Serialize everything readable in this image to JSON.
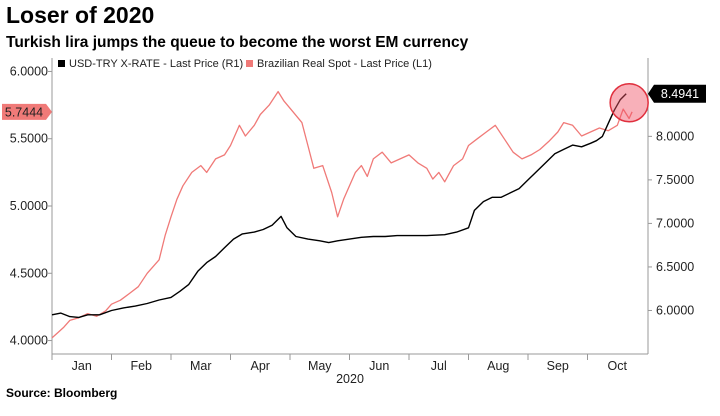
{
  "title": "Loser of 2020",
  "subtitle": "Turkish lira jumps the queue to become the worst EM currency",
  "source": "Source: Bloomberg",
  "chart_data": {
    "type": "line",
    "xlabel": "2020",
    "x_ticks": [
      "Jan",
      "Feb",
      "Mar",
      "Apr",
      "May",
      "Jun",
      "Jul",
      "Aug",
      "Sep",
      "Oct"
    ],
    "left_axis": {
      "ticks": [
        "4.0000",
        "4.5000",
        "5.0000",
        "5.5000",
        "6.0000"
      ],
      "range": [
        3.9,
        6.1
      ]
    },
    "right_axis": {
      "ticks": [
        "6.0000",
        "6.5000",
        "7.0000",
        "7.5000",
        "8.0000"
      ],
      "range": [
        5.5,
        8.9
      ]
    },
    "grid": false,
    "legend_position": "top-left",
    "series": [
      {
        "name": "USD-TRY X-RATE - Last Price (R1)",
        "axis": "right",
        "color": "#000000",
        "last_value_label": "8.4941",
        "points": [
          [
            0.0,
            5.95
          ],
          [
            0.15,
            5.97
          ],
          [
            0.3,
            5.93
          ],
          [
            0.45,
            5.92
          ],
          [
            0.6,
            5.95
          ],
          [
            0.8,
            5.95
          ],
          [
            1.0,
            6.0
          ],
          [
            1.2,
            6.03
          ],
          [
            1.4,
            6.05
          ],
          [
            1.6,
            6.08
          ],
          [
            1.8,
            6.12
          ],
          [
            2.0,
            6.15
          ],
          [
            2.15,
            6.22
          ],
          [
            2.3,
            6.3
          ],
          [
            2.45,
            6.45
          ],
          [
            2.6,
            6.55
          ],
          [
            2.75,
            6.62
          ],
          [
            2.9,
            6.72
          ],
          [
            3.05,
            6.82
          ],
          [
            3.2,
            6.88
          ],
          [
            3.4,
            6.9
          ],
          [
            3.55,
            6.93
          ],
          [
            3.7,
            6.98
          ],
          [
            3.85,
            7.08
          ],
          [
            3.95,
            6.95
          ],
          [
            4.1,
            6.85
          ],
          [
            4.3,
            6.82
          ],
          [
            4.5,
            6.8
          ],
          [
            4.65,
            6.78
          ],
          [
            4.8,
            6.8
          ],
          [
            5.0,
            6.82
          ],
          [
            5.2,
            6.84
          ],
          [
            5.4,
            6.85
          ],
          [
            5.6,
            6.85
          ],
          [
            5.8,
            6.86
          ],
          [
            6.0,
            6.86
          ],
          [
            6.3,
            6.86
          ],
          [
            6.6,
            6.87
          ],
          [
            6.8,
            6.9
          ],
          [
            7.0,
            6.95
          ],
          [
            7.1,
            7.15
          ],
          [
            7.25,
            7.25
          ],
          [
            7.4,
            7.3
          ],
          [
            7.55,
            7.3
          ],
          [
            7.7,
            7.35
          ],
          [
            7.85,
            7.4
          ],
          [
            8.0,
            7.5
          ],
          [
            8.15,
            7.6
          ],
          [
            8.3,
            7.7
          ],
          [
            8.45,
            7.8
          ],
          [
            8.6,
            7.85
          ],
          [
            8.75,
            7.9
          ],
          [
            8.9,
            7.88
          ],
          [
            9.05,
            7.92
          ],
          [
            9.15,
            7.95
          ],
          [
            9.25,
            8.0
          ],
          [
            9.35,
            8.15
          ],
          [
            9.45,
            8.3
          ],
          [
            9.55,
            8.42
          ],
          [
            9.65,
            8.49
          ]
        ]
      },
      {
        "name": "Brazilian Real Spot - Last Price (L1)",
        "axis": "left",
        "color": "#f07a78",
        "last_value_label": "5.7444",
        "points": [
          [
            0.0,
            4.02
          ],
          [
            0.1,
            4.06
          ],
          [
            0.2,
            4.1
          ],
          [
            0.3,
            4.15
          ],
          [
            0.45,
            4.17
          ],
          [
            0.6,
            4.2
          ],
          [
            0.75,
            4.18
          ],
          [
            0.9,
            4.22
          ],
          [
            1.0,
            4.27
          ],
          [
            1.15,
            4.3
          ],
          [
            1.3,
            4.35
          ],
          [
            1.45,
            4.4
          ],
          [
            1.6,
            4.5
          ],
          [
            1.8,
            4.6
          ],
          [
            1.9,
            4.78
          ],
          [
            2.0,
            4.92
          ],
          [
            2.1,
            5.05
          ],
          [
            2.2,
            5.15
          ],
          [
            2.35,
            5.25
          ],
          [
            2.5,
            5.3
          ],
          [
            2.6,
            5.25
          ],
          [
            2.75,
            5.35
          ],
          [
            2.9,
            5.38
          ],
          [
            3.0,
            5.45
          ],
          [
            3.15,
            5.6
          ],
          [
            3.25,
            5.52
          ],
          [
            3.4,
            5.6
          ],
          [
            3.5,
            5.68
          ],
          [
            3.65,
            5.75
          ],
          [
            3.8,
            5.85
          ],
          [
            3.9,
            5.78
          ],
          [
            4.05,
            5.7
          ],
          [
            4.2,
            5.62
          ],
          [
            4.3,
            5.45
          ],
          [
            4.4,
            5.28
          ],
          [
            4.55,
            5.3
          ],
          [
            4.7,
            5.1
          ],
          [
            4.8,
            4.92
          ],
          [
            4.9,
            5.05
          ],
          [
            5.0,
            5.15
          ],
          [
            5.1,
            5.25
          ],
          [
            5.2,
            5.3
          ],
          [
            5.3,
            5.22
          ],
          [
            5.4,
            5.35
          ],
          [
            5.55,
            5.4
          ],
          [
            5.7,
            5.32
          ],
          [
            5.85,
            5.35
          ],
          [
            6.0,
            5.38
          ],
          [
            6.15,
            5.32
          ],
          [
            6.3,
            5.28
          ],
          [
            6.4,
            5.2
          ],
          [
            6.5,
            5.25
          ],
          [
            6.6,
            5.18
          ],
          [
            6.75,
            5.3
          ],
          [
            6.9,
            5.35
          ],
          [
            7.0,
            5.45
          ],
          [
            7.15,
            5.5
          ],
          [
            7.3,
            5.55
          ],
          [
            7.45,
            5.6
          ],
          [
            7.6,
            5.5
          ],
          [
            7.75,
            5.4
          ],
          [
            7.9,
            5.35
          ],
          [
            8.05,
            5.38
          ],
          [
            8.2,
            5.42
          ],
          [
            8.35,
            5.48
          ],
          [
            8.5,
            5.55
          ],
          [
            8.6,
            5.62
          ],
          [
            8.75,
            5.6
          ],
          [
            8.9,
            5.52
          ],
          [
            9.05,
            5.55
          ],
          [
            9.2,
            5.58
          ],
          [
            9.35,
            5.56
          ],
          [
            9.5,
            5.6
          ],
          [
            9.6,
            5.72
          ],
          [
            9.7,
            5.65
          ],
          [
            9.75,
            5.7
          ]
        ]
      }
    ]
  }
}
